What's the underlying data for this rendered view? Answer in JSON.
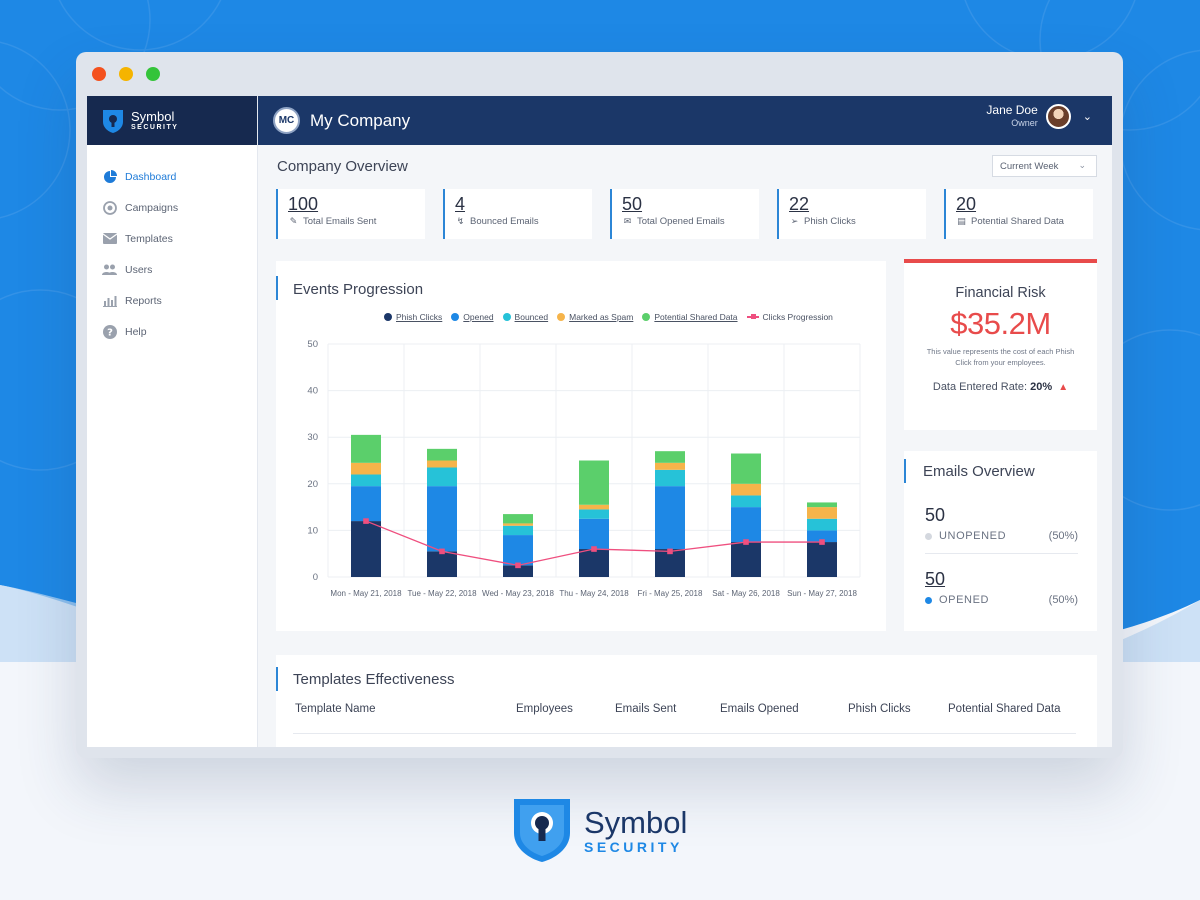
{
  "colors": {
    "background_blue": "#1e88e5",
    "navy": "#16294f",
    "accent": "#2c86d6",
    "risk_red": "#e84b4b"
  },
  "brand": {
    "line1": "Symbol",
    "line2": "SECURITY"
  },
  "sidebar": {
    "items": [
      {
        "label": "Dashboard",
        "icon": "pie-chart-icon",
        "active": true
      },
      {
        "label": "Campaigns",
        "icon": "target-icon",
        "active": false
      },
      {
        "label": "Templates",
        "icon": "envelope-icon",
        "active": false
      },
      {
        "label": "Users",
        "icon": "users-icon",
        "active": false
      },
      {
        "label": "Reports",
        "icon": "bar-chart-icon",
        "active": false
      },
      {
        "label": "Help",
        "icon": "help-icon",
        "active": false
      }
    ]
  },
  "header": {
    "company_initials": "MC",
    "company_name": "My Company",
    "user_name": "Jane Doe",
    "user_role": "Owner"
  },
  "overview": {
    "title": "Company Overview",
    "period": "Current Week",
    "stats": [
      {
        "value": "100",
        "label": "Total Emails Sent",
        "icon": "sent-icon"
      },
      {
        "value": "4",
        "label": "Bounced Emails",
        "icon": "bounce-icon"
      },
      {
        "value": "50",
        "label": "Total Opened Emails",
        "icon": "open-envelope-icon"
      },
      {
        "value": "22",
        "label": "Phish Clicks",
        "icon": "cursor-click-icon"
      },
      {
        "value": "20",
        "label": "Potential Shared Data",
        "icon": "document-icon"
      }
    ]
  },
  "events": {
    "title": "Events Progression"
  },
  "chart_data": {
    "type": "bar",
    "stacked": true,
    "categories": [
      "Mon - May 21, 2018",
      "Tue - May 22, 2018",
      "Wed - May 23, 2018",
      "Thu - May 24, 2018",
      "Fri - May 25, 2018",
      "Sat - May 26, 2018",
      "Sun - May 27, 2018"
    ],
    "ylim": [
      0,
      50
    ],
    "yticks": [
      0,
      10,
      20,
      30,
      40,
      50
    ],
    "grid": true,
    "legend_position": "top",
    "series": [
      {
        "name": "Phish Clicks",
        "color": "#1b3768",
        "values": [
          12,
          5.5,
          2.5,
          6,
          6,
          7.5,
          7.5
        ]
      },
      {
        "name": "Opened",
        "color": "#1e88e5",
        "values": [
          7.5,
          14,
          6.5,
          6.5,
          13.5,
          7.5,
          2.5
        ]
      },
      {
        "name": "Bounced",
        "color": "#26c2d8",
        "values": [
          2.5,
          4,
          2,
          2,
          3.5,
          2.5,
          2.5
        ]
      },
      {
        "name": "Marked as Spam",
        "color": "#f6b44a",
        "values": [
          2.5,
          1.5,
          0.5,
          1,
          1.5,
          2.5,
          2.5
        ]
      },
      {
        "name": "Potential Shared Data",
        "color": "#5bcf6b",
        "values": [
          6,
          2.5,
          2,
          9.5,
          2.5,
          6.5,
          1
        ]
      }
    ],
    "line_series": {
      "name": "Clicks Progression",
      "color": "#ef4f7f",
      "values": [
        12,
        5.5,
        2.5,
        6,
        5.5,
        7.5,
        7.5
      ]
    }
  },
  "financial_risk": {
    "title": "Financial Risk",
    "value": "$35.2M",
    "description": "This value represents the cost of each Phish Click from your employees.",
    "rate_label": "Data Entered Rate:",
    "rate_value": "20%",
    "trend_icon": "triangle-up-icon"
  },
  "emails_overview": {
    "title": "Emails Overview",
    "rows": [
      {
        "value": "50",
        "label": "UNOPENED",
        "percent": "(50%)",
        "dot_color": "#d4d8df"
      },
      {
        "value": "50",
        "label": "OPENED",
        "percent": "(50%)",
        "dot_color": "#1e88e5"
      }
    ]
  },
  "templates": {
    "title": "Templates Effectiveness",
    "columns": [
      "Template Name",
      "Employees",
      "Emails Sent",
      "Emails Opened",
      "Phish Clicks",
      "Potential Shared Data"
    ]
  },
  "footer": {
    "line1": "Symbol",
    "line2": "SECURITY"
  }
}
